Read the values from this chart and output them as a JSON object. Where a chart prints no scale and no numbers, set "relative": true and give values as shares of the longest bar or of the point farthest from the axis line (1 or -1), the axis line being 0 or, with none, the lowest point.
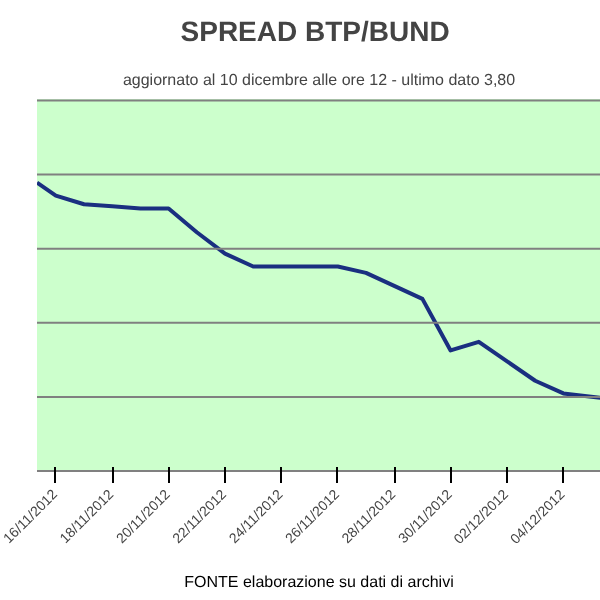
{
  "chart_data": {
    "type": "line",
    "title": "SPREAD  BTP/BUND",
    "subtitle": "aggiornato al 10 dicembre alle ore 12 - ultimo dato 3,80",
    "relative": true,
    "grid": "y",
    "marker": "none",
    "line_style": "solid",
    "x": [
      "2012-11-15T08:00",
      "2012-11-16",
      "2012-11-17",
      "2012-11-18",
      "2012-11-19",
      "2012-11-20",
      "2012-11-21",
      "2012-11-22",
      "2012-11-23",
      "2012-11-26",
      "2012-11-27",
      "2012-11-28",
      "2012-11-29",
      "2012-11-30",
      "2012-12-01",
      "2012-12-03",
      "2012-12-04",
      "2012-12-05T08:00"
    ],
    "series": [
      {
        "color": "#1a2f80",
        "values": [
          1.0,
          0.955,
          0.925,
          0.918,
          0.91,
          0.91,
          0.828,
          0.754,
          0.709,
          0.709,
          0.687,
          0.642,
          0.597,
          0.418,
          0.448,
          0.313,
          0.269,
          0.254
        ]
      }
    ],
    "xlim": [
      "2012-11-15T08:00",
      "2012-12-05T08:00"
    ],
    "xticks": [
      {
        "value": "2012-11-16",
        "label": "16/11/2012"
      },
      {
        "value": "2012-11-18",
        "label": "18/11/2012"
      },
      {
        "value": "2012-11-20",
        "label": "20/11/2012"
      },
      {
        "value": "2012-11-22",
        "label": "22/11/2012"
      },
      {
        "value": "2012-11-24",
        "label": "24/11/2012"
      },
      {
        "value": "2012-11-26",
        "label": "26/11/2012"
      },
      {
        "value": "2012-11-28",
        "label": "28/11/2012"
      },
      {
        "value": "2012-11-30",
        "label": "30/11/2012"
      },
      {
        "value": "2012-12-02",
        "label": "02/12/2012"
      },
      {
        "value": "2012-12-04",
        "label": "04/12/2012"
      }
    ],
    "annotations": [
      "FONTE elaborazione su dati di archivi"
    ]
  }
}
